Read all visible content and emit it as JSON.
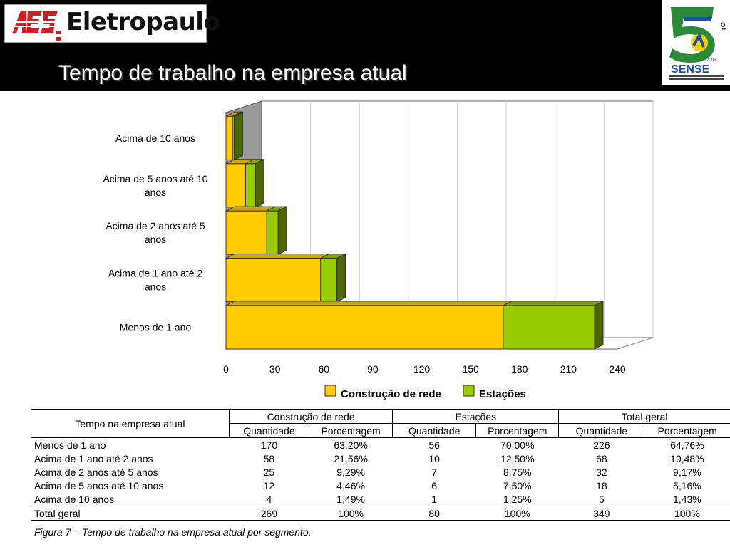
{
  "header": {
    "logo_brand": "Eletropaulo",
    "title": "Tempo de trabalho na empresa atual",
    "sense_logo_text": "SENSE",
    "sense_logo_number": "5",
    "sense_logo_ordinal": "o"
  },
  "colors": {
    "series1": "#FFCC00",
    "series2": "#99CC00",
    "header_bg": "#000000",
    "aes_red": "#CC1F26"
  },
  "chart_data": {
    "type": "bar",
    "orientation": "horizontal",
    "stacked": true,
    "three_d": true,
    "categories": [
      "Acima de 10 anos",
      "Acima de 5 anos até 10 anos",
      "Acima de 2 anos até 5 anos",
      "Acima de 1 ano até 2 anos",
      "Menos de 1 ano"
    ],
    "series": [
      {
        "name": "Construção de rede",
        "values": [
          4,
          12,
          25,
          58,
          170
        ]
      },
      {
        "name": "Estações",
        "values": [
          1,
          6,
          7,
          10,
          56
        ]
      }
    ],
    "xticks": [
      "0",
      "30",
      "60",
      "90",
      "120",
      "150",
      "180",
      "210",
      "240"
    ],
    "xlim": [
      0,
      240
    ],
    "grid": true,
    "legend_position": "bottom"
  },
  "table": {
    "col_header": "Tempo na empresa atual",
    "group_headers": [
      "Construção de rede",
      "Estações",
      "Total geral"
    ],
    "sub_headers": [
      "Quantidade",
      "Porcentagem",
      "Quantidade",
      "Porcentagem",
      "Quantidade",
      "Porcentagem"
    ],
    "rows": [
      {
        "label": "Menos de 1 ano",
        "values": [
          "170",
          "63,20%",
          "56",
          "70,00%",
          "226",
          "64,76%"
        ]
      },
      {
        "label": "Acima de 1 ano até 2 anos",
        "values": [
          "58",
          "21,56%",
          "10",
          "12,50%",
          "68",
          "19,48%"
        ]
      },
      {
        "label": "Acima de 2 anos até 5 anos",
        "values": [
          "25",
          "9,29%",
          "7",
          "8,75%",
          "32",
          "9,17%"
        ]
      },
      {
        "label": "Acima de 5 anos até 10 anos",
        "values": [
          "12",
          "4,46%",
          "6",
          "7,50%",
          "18",
          "5,16%"
        ]
      },
      {
        "label": "Acima de 10 anos",
        "values": [
          "4",
          "1,49%",
          "1",
          "1,25%",
          "5",
          "1,43%"
        ]
      }
    ],
    "total": {
      "label": "Total geral",
      "values": [
        "269",
        "100%",
        "80",
        "100%",
        "349",
        "100%"
      ]
    }
  },
  "caption": "Figura 7 – Tempo de trabalho na empresa atual por segmento."
}
